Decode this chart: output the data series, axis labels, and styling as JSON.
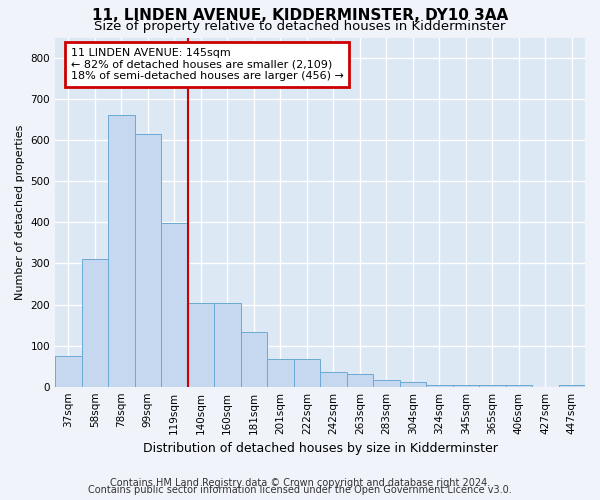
{
  "title": "11, LINDEN AVENUE, KIDDERMINSTER, DY10 3AA",
  "subtitle": "Size of property relative to detached houses in Kidderminster",
  "xlabel": "Distribution of detached houses by size in Kidderminster",
  "ylabel": "Number of detached properties",
  "categories": [
    "37sqm",
    "58sqm",
    "78sqm",
    "99sqm",
    "119sqm",
    "140sqm",
    "160sqm",
    "181sqm",
    "201sqm",
    "222sqm",
    "242sqm",
    "263sqm",
    "283sqm",
    "304sqm",
    "324sqm",
    "345sqm",
    "365sqm",
    "406sqm",
    "427sqm",
    "447sqm"
  ],
  "values": [
    75,
    312,
    662,
    615,
    398,
    203,
    203,
    133,
    68,
    68,
    35,
    32,
    16,
    12,
    4,
    4,
    4,
    4,
    0,
    5
  ],
  "bar_color": "#c5d8ef",
  "bar_edge_color": "#6aaad4",
  "background_color": "#dde8f5",
  "grid_color": "#ffffff",
  "vline_x": 4.5,
  "vline_color": "#cc0000",
  "annotation_line1": "11 LINDEN AVENUE: 145sqm",
  "annotation_line2": "← 82% of detached houses are smaller (2,109)",
  "annotation_line3": "18% of semi-detached houses are larger (456) →",
  "annotation_box_color": "#cc0000",
  "ylim": [
    0,
    850
  ],
  "yticks": [
    0,
    100,
    200,
    300,
    400,
    500,
    600,
    700,
    800
  ],
  "footer1": "Contains HM Land Registry data © Crown copyright and database right 2024.",
  "footer2": "Contains public sector information licensed under the Open Government Licence v3.0.",
  "title_fontsize": 11,
  "subtitle_fontsize": 9.5,
  "xlabel_fontsize": 9,
  "ylabel_fontsize": 8,
  "tick_fontsize": 7.5,
  "annotation_fontsize": 8,
  "footer_fontsize": 7
}
